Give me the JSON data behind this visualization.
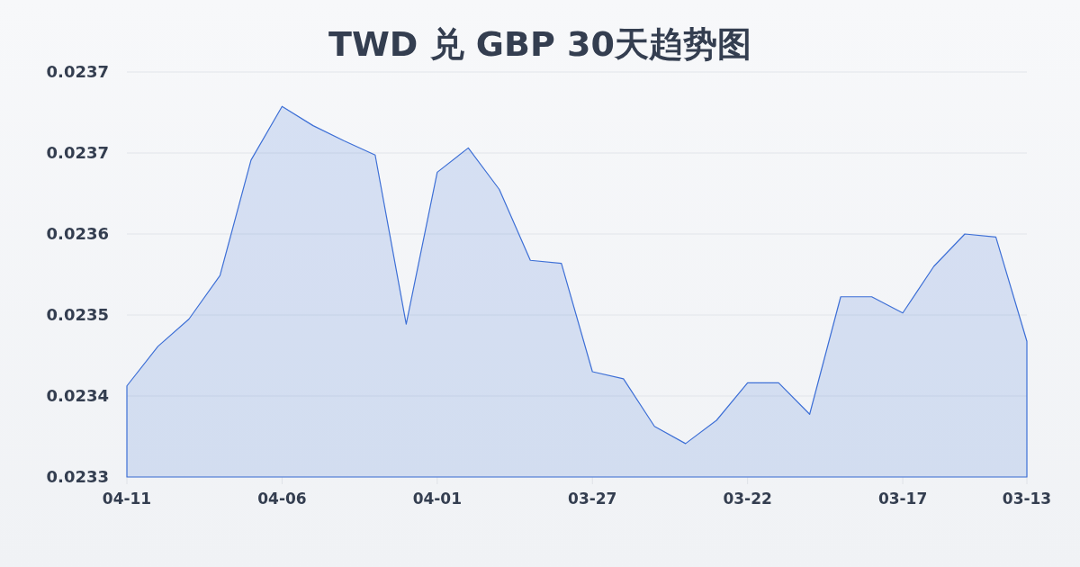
{
  "chart_data": {
    "type": "area",
    "title": "TWD 兑 GBP 30天趋势图",
    "categories": [
      "04-11",
      null,
      null,
      null,
      null,
      "04-06",
      null,
      null,
      null,
      null,
      "04-01",
      null,
      null,
      null,
      null,
      "03-27",
      null,
      null,
      null,
      null,
      "03-22",
      null,
      null,
      null,
      null,
      "03-17",
      null,
      null,
      null,
      "03-13"
    ],
    "values": [
      0.02343,
      0.023469,
      0.023496,
      0.023539,
      0.023653,
      0.023706,
      0.023687,
      0.023672,
      0.023658,
      0.023491,
      0.023641,
      0.023665,
      0.023624,
      0.023554,
      0.023551,
      0.023444,
      0.023437,
      0.02339,
      0.023373,
      0.023396,
      0.023433,
      0.023433,
      0.023402,
      0.023518,
      0.023518,
      0.023502,
      0.023548,
      0.02358,
      0.023577,
      0.023474
    ],
    "color": "#3d6fd6",
    "ylim": [
      0.02334,
      0.02374
    ],
    "yticks": [
      {
        "value": 0.02334,
        "label": "0.0233"
      },
      {
        "value": 0.02342,
        "label": "0.0234"
      },
      {
        "value": 0.0235,
        "label": "0.0235"
      },
      {
        "value": 0.02358,
        "label": "0.0236"
      },
      {
        "value": 0.02366,
        "label": "0.0237"
      },
      {
        "value": 0.02374,
        "label": "0.0237"
      }
    ],
    "grid": "y"
  }
}
